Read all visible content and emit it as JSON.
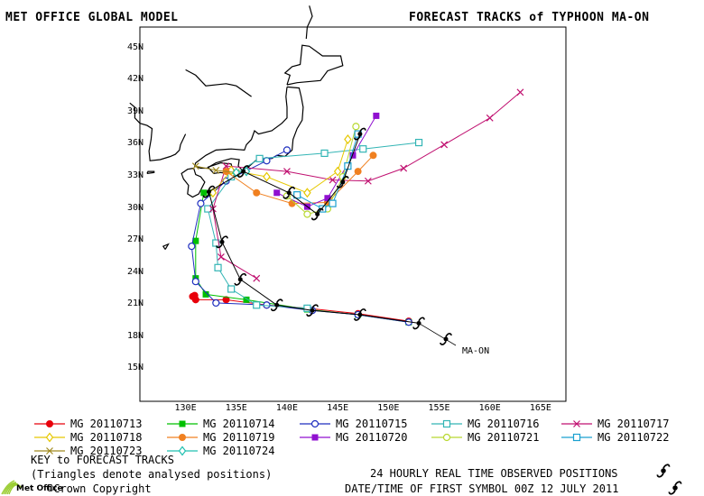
{
  "header": {
    "model": "MET OFFICE GLOBAL MODEL",
    "title": "FORECAST TRACKS of TYPHOON MA-ON"
  },
  "map": {
    "lat_labels": [
      "45N",
      "42N",
      "39N",
      "36N",
      "33N",
      "30N",
      "27N",
      "24N",
      "21N",
      "18N",
      "15N"
    ],
    "lon_labels": [
      "130E",
      "135E",
      "140E",
      "145E",
      "150E",
      "155E",
      "160E",
      "165E"
    ],
    "storm_label": "MA-ON"
  },
  "key": {
    "items": [
      {
        "label": "MG 20110713",
        "color": "#e8000b",
        "marker": "circle-filled"
      },
      {
        "label": "MG 20110714",
        "color": "#00c000",
        "marker": "square-filled"
      },
      {
        "label": "MG 20110715",
        "color": "#1f2fbf",
        "marker": "circle-open"
      },
      {
        "label": "MG 20110716",
        "color": "#33b5b5",
        "marker": "square-open"
      },
      {
        "label": "MG 20110717",
        "color": "#c01070",
        "marker": "x"
      },
      {
        "label": "MG 20110718",
        "color": "#e6c800",
        "marker": "diamond-open"
      },
      {
        "label": "MG 20110719",
        "color": "#f08020",
        "marker": "circle-filled"
      },
      {
        "label": "MG 20110720",
        "color": "#9010d0",
        "marker": "square-filled"
      },
      {
        "label": "MG 20110721",
        "color": "#b8d830",
        "marker": "circle-open"
      },
      {
        "label": "MG 20110722",
        "color": "#1aa0d0",
        "marker": "square-open"
      },
      {
        "label": "MG 20110723",
        "color": "#a08a20",
        "marker": "x"
      },
      {
        "label": "MG 20110724",
        "color": "#20c0b0",
        "marker": "diamond-open"
      }
    ],
    "title": "KEY to FORECAST TRACKS",
    "note": "(Triangles denote analysed positions)"
  },
  "footer": {
    "observed": "24 HOURLY REAL TIME OBSERVED POSITIONS",
    "datetime": "DATE/TIME OF FIRST SYMBOL 00Z 12 JULY 2011",
    "copyright": "©Crown Copyright",
    "logo_text": "Met Office"
  },
  "tracks": [
    {
      "color": "#e8000b",
      "marker": "circle-filled",
      "points": [
        [
          152,
          19.5
        ],
        [
          147,
          20.2
        ],
        [
          142,
          20.7
        ],
        [
          138,
          21
        ],
        [
          134,
          21.5
        ],
        [
          131,
          21.5
        ],
        [
          130.7,
          21.8
        ],
        [
          130.9,
          21.9
        ]
      ]
    },
    {
      "color": "#00c000",
      "marker": "square-filled",
      "points": [
        [
          152,
          19.4
        ],
        [
          147,
          20.1
        ],
        [
          142,
          20.6
        ],
        [
          136,
          21.5
        ],
        [
          132,
          22
        ],
        [
          131,
          23.5
        ],
        [
          131,
          27
        ],
        [
          131.8,
          31.5
        ],
        [
          132.5,
          31.5
        ]
      ]
    },
    {
      "color": "#1f2fbf",
      "marker": "circle-open",
      "points": [
        [
          152,
          19.4
        ],
        [
          147,
          20.1
        ],
        [
          142.5,
          20.5
        ],
        [
          138,
          21
        ],
        [
          133,
          21.2
        ],
        [
          131,
          23.2
        ],
        [
          130.6,
          26.5
        ],
        [
          131.5,
          30.5
        ],
        [
          134,
          32.6
        ],
        [
          138,
          34.5
        ],
        [
          140,
          35.5
        ]
      ]
    },
    {
      "color": "#33b5b5",
      "marker": "square-open",
      "points": [
        [
          142,
          20.7
        ],
        [
          137,
          21
        ],
        [
          134.5,
          22.5
        ],
        [
          133.2,
          24.5
        ],
        [
          133,
          26.8
        ],
        [
          132.2,
          30
        ],
        [
          134.5,
          33
        ],
        [
          137.3,
          34.7
        ],
        [
          143.7,
          35.2
        ],
        [
          147.5,
          35.6
        ],
        [
          153,
          36.2
        ]
      ]
    },
    {
      "color": "#c01070",
      "marker": "x",
      "points": [
        [
          137,
          23.5
        ],
        [
          133.5,
          25.5
        ],
        [
          132.7,
          30
        ],
        [
          134,
          34
        ],
        [
          140,
          33.5
        ],
        [
          144.5,
          32.7
        ],
        [
          148,
          32.6
        ],
        [
          151.5,
          33.8
        ],
        [
          155.5,
          36
        ],
        [
          160,
          38.5
        ],
        [
          163,
          40.9
        ]
      ]
    },
    {
      "color": "#e6c800",
      "marker": "diamond-open",
      "points": [
        [
          132.7,
          31.5
        ],
        [
          134.5,
          33.6
        ],
        [
          138,
          33
        ],
        [
          142,
          31.5
        ],
        [
          145,
          33.5
        ],
        [
          146,
          36.5
        ]
      ]
    },
    {
      "color": "#f08020",
      "marker": "circle-filled",
      "points": [
        [
          134,
          33.5
        ],
        [
          137,
          31.5
        ],
        [
          140.5,
          30.5
        ],
        [
          144,
          30.6
        ],
        [
          147,
          33.5
        ],
        [
          148.5,
          35
        ]
      ]
    },
    {
      "color": "#9010d0",
      "marker": "square-filled",
      "points": [
        [
          139,
          31.5
        ],
        [
          142,
          30.2
        ],
        [
          144,
          31
        ],
        [
          146.5,
          35
        ],
        [
          148.8,
          38.7
        ]
      ]
    },
    {
      "color": "#b8d830",
      "marker": "circle-open",
      "points": [
        [
          140,
          31.2
        ],
        [
          142,
          29.5
        ],
        [
          144,
          30
        ],
        [
          145.5,
          33
        ],
        [
          146.8,
          37.7
        ]
      ]
    },
    {
      "color": "#1aa0d0",
      "marker": "square-open",
      "points": [
        [
          141,
          31.3
        ],
        [
          143.5,
          30
        ],
        [
          144.5,
          30.5
        ],
        [
          146,
          34
        ],
        [
          147,
          37
        ]
      ]
    },
    {
      "color": "#a08a20",
      "marker": "x",
      "points": [
        [
          131,
          34
        ],
        [
          133,
          33.6
        ],
        [
          135,
          33.4
        ]
      ]
    },
    {
      "color": "#20c0b0",
      "marker": "diamond-open",
      "points": [
        [
          136,
          33.5
        ],
        [
          135,
          33.4
        ]
      ]
    }
  ],
  "observed_positions": [
    [
      153,
      19.3
    ],
    [
      147.2,
      20.1
    ],
    [
      142.5,
      20.5
    ],
    [
      139,
      21
    ],
    [
      135.4,
      23.4
    ],
    [
      133.6,
      26.9
    ],
    [
      132.3,
      31.6
    ],
    [
      135.7,
      33.5
    ],
    [
      140.2,
      31.5
    ],
    [
      143,
      29.5
    ],
    [
      145.5,
      32.5
    ],
    [
      147.2,
      37
    ]
  ],
  "coastlines": [
    [
      [
        130,
        43
      ],
      [
        131,
        42.5
      ],
      [
        131.5,
        42
      ],
      [
        132,
        41.5
      ],
      [
        134,
        41.7
      ],
      [
        135,
        41.5
      ],
      [
        136.5,
        40.5
      ]
    ],
    [
      [
        140,
        41.4
      ],
      [
        139.9,
        40.5
      ],
      [
        140,
        39.5
      ],
      [
        140,
        38.5
      ],
      [
        139.5,
        38
      ],
      [
        138.5,
        37.3
      ],
      [
        137.2,
        37
      ],
      [
        136.8,
        37.3
      ],
      [
        136.5,
        36.5
      ],
      [
        136,
        36
      ],
      [
        135.8,
        35.5
      ],
      [
        134.5,
        35.6
      ],
      [
        133,
        35.5
      ],
      [
        132,
        35
      ],
      [
        131,
        34.3
      ],
      [
        130.9,
        34
      ],
      [
        131.5,
        33.8
      ],
      [
        132.1,
        33.8
      ],
      [
        133,
        34.3
      ],
      [
        134.5,
        34.7
      ],
      [
        135.3,
        34.6
      ],
      [
        135.2,
        34
      ],
      [
        135.7,
        33.5
      ],
      [
        136.3,
        34
      ],
      [
        136.9,
        34.5
      ],
      [
        137.5,
        34.7
      ],
      [
        138.5,
        34.7
      ],
      [
        139,
        35
      ],
      [
        139.8,
        34.9
      ],
      [
        140.5,
        35.5
      ],
      [
        140.6,
        36.5
      ],
      [
        141,
        37.5
      ],
      [
        141.5,
        38.3
      ],
      [
        141.6,
        39.5
      ],
      [
        141.4,
        40.5
      ],
      [
        141.2,
        41.3
      ],
      [
        140,
        41.4
      ]
    ],
    [
      [
        140,
        41.6
      ],
      [
        140.3,
        42.5
      ],
      [
        139.8,
        42.7
      ],
      [
        140.5,
        43.3
      ],
      [
        141.3,
        43.5
      ],
      [
        141.5,
        45.3
      ],
      [
        142.2,
        45.2
      ],
      [
        143.5,
        44.3
      ],
      [
        145.3,
        44.3
      ],
      [
        145.5,
        43.4
      ],
      [
        144,
        42.9
      ],
      [
        143.3,
        42
      ],
      [
        141,
        41.8
      ],
      [
        140,
        41.6
      ]
    ],
    [
      [
        141.9,
        45.9
      ],
      [
        142,
        47
      ],
      [
        142.5,
        48
      ],
      [
        142.2,
        49
      ]
    ],
    [
      [
        130.8,
        33.8
      ],
      [
        131,
        33.2
      ],
      [
        131.5,
        33
      ],
      [
        131.9,
        32.5
      ],
      [
        131.3,
        31.4
      ],
      [
        130.7,
        31.1
      ],
      [
        130.2,
        31.4
      ],
      [
        130.3,
        32.2
      ],
      [
        129.8,
        32.8
      ],
      [
        129.6,
        33.3
      ],
      [
        130.2,
        33.7
      ],
      [
        130.8,
        33.8
      ]
    ],
    [
      [
        132.2,
        33.9
      ],
      [
        132.8,
        33.3
      ],
      [
        133.4,
        33.4
      ],
      [
        134.2,
        33.3
      ],
      [
        134.6,
        33.8
      ],
      [
        134.5,
        34.2
      ],
      [
        133.5,
        34.3
      ],
      [
        132.2,
        33.9
      ]
    ],
    [
      [
        130,
        37
      ],
      [
        129.5,
        36
      ],
      [
        129.4,
        35.5
      ],
      [
        129,
        35.1
      ],
      [
        128.5,
        34.9
      ],
      [
        127.5,
        34.6
      ],
      [
        126.5,
        34.5
      ],
      [
        126.4,
        35.4
      ],
      [
        126.6,
        36.5
      ],
      [
        126.7,
        37.5
      ],
      [
        126.2,
        37.8
      ],
      [
        125.5,
        38
      ],
      [
        125,
        38.5
      ],
      [
        125,
        39.5
      ],
      [
        124.5,
        39.9
      ]
    ],
    [
      [
        126.2,
        33.3
      ],
      [
        126.9,
        33.4
      ],
      [
        126.9,
        33.5
      ],
      [
        126.3,
        33.5
      ],
      [
        126.2,
        33.3
      ]
    ],
    [
      [
        128,
        26.2
      ],
      [
        128.3,
        26.7
      ],
      [
        127.8,
        26.5
      ],
      [
        128,
        26.2
      ]
    ]
  ]
}
